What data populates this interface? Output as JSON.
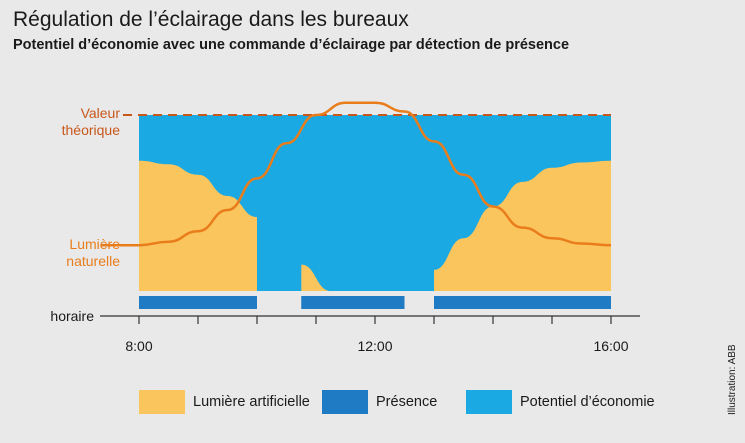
{
  "title": "Régulation de l’éclairage dans les bureaux",
  "subtitle": "Potentiel d’économie avec une commande d’éclairage par détection de présence",
  "credit": "Illustration: ABB",
  "colors": {
    "artificial_light": "#fbc55e",
    "presence": "#1f7cc4",
    "savings": "#1aa9e2",
    "natural_light": "#e97d1c",
    "background": "#e9e9e9"
  },
  "chart_data": {
    "type": "area",
    "x_unit": "hour",
    "xlim": [
      8,
      16
    ],
    "x_ticks": [
      "8:00",
      "12:00",
      "16:00"
    ],
    "y_labels": {
      "theoretical": "Valeur théorique",
      "natural": "Lumière naturelle",
      "schedule": "horaire"
    },
    "theoretical_value": 1.0,
    "natural_light": {
      "x": [
        7.5,
        8,
        8.5,
        9,
        9.5,
        10,
        10.5,
        11,
        11.5,
        12,
        12.5,
        13,
        13.5,
        14,
        14.5,
        15,
        15.5,
        16
      ],
      "y": [
        0.26,
        0.26,
        0.28,
        0.34,
        0.46,
        0.64,
        0.84,
        1.0,
        1.07,
        1.07,
        1.02,
        0.85,
        0.66,
        0.48,
        0.36,
        0.3,
        0.27,
        0.26
      ]
    },
    "artificial_light": {
      "x": [
        8,
        8.5,
        9,
        9.5,
        10,
        10,
        10.75,
        11.25,
        13,
        13.5,
        14,
        14.5,
        15,
        15.5,
        16
      ],
      "y": [
        0.74,
        0.72,
        0.66,
        0.54,
        0.42,
        0,
        0.15,
        0,
        0.12,
        0.3,
        0.48,
        0.62,
        0.7,
        0.73,
        0.74
      ]
    },
    "presence": [
      {
        "start": 8,
        "end": 10
      },
      {
        "start": 10.75,
        "end": 12.5
      },
      {
        "start": 13,
        "end": 16
      }
    ],
    "legend": [
      {
        "label": "Lumière artificielle",
        "color": "#fbc55e"
      },
      {
        "label": "Présence",
        "color": "#1f7cc4"
      },
      {
        "label": "Potentiel d’économie",
        "color": "#1aa9e2"
      }
    ]
  }
}
